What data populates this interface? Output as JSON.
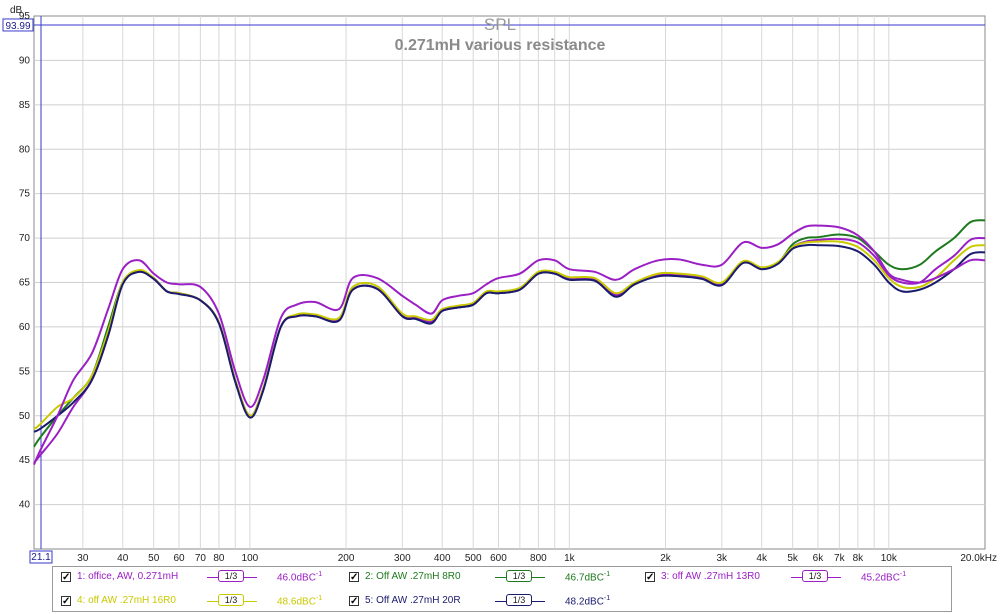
{
  "chart_data": {
    "type": "line",
    "title": "SPL",
    "subtitle": "0.271mH various resistance",
    "ylabel": "dB",
    "xscale": "log",
    "xlim": [
      21.1,
      20000
    ],
    "ylim": [
      35,
      95
    ],
    "grid": true,
    "cursor_readout": "93.99",
    "x_start_readout": "21.1",
    "y_ticks": [
      "40",
      "45",
      "50",
      "55",
      "60",
      "65",
      "70",
      "75",
      "80",
      "85",
      "90",
      "95"
    ],
    "x_ticks": [
      {
        "v": 30,
        "label": "30"
      },
      {
        "v": 40,
        "label": "40"
      },
      {
        "v": 50,
        "label": "50"
      },
      {
        "v": 60,
        "label": "60"
      },
      {
        "v": 70,
        "label": "70"
      },
      {
        "v": 80,
        "label": "80"
      },
      {
        "v": 100,
        "label": "100"
      },
      {
        "v": 200,
        "label": "200"
      },
      {
        "v": 300,
        "label": "300"
      },
      {
        "v": 400,
        "label": "400"
      },
      {
        "v": 500,
        "label": "500"
      },
      {
        "v": 600,
        "label": "600"
      },
      {
        "v": 800,
        "label": "800"
      },
      {
        "v": 1000,
        "label": "1k"
      },
      {
        "v": 2000,
        "label": "2k"
      },
      {
        "v": 3000,
        "label": "3k"
      },
      {
        "v": 4000,
        "label": "4k"
      },
      {
        "v": 5000,
        "label": "5k"
      },
      {
        "v": 6000,
        "label": "6k"
      },
      {
        "v": 7000,
        "label": "7k"
      },
      {
        "v": 8000,
        "label": "8k"
      },
      {
        "v": 10000,
        "label": "10k"
      },
      {
        "v": 20000,
        "label": "20.0kHz"
      }
    ],
    "x": [
      21.1,
      22,
      25,
      28,
      32,
      36,
      40,
      45,
      50,
      55,
      60,
      70,
      80,
      90,
      100,
      110,
      125,
      140,
      160,
      190,
      210,
      250,
      300,
      330,
      370,
      400,
      450,
      500,
      550,
      600,
      700,
      800,
      900,
      1000,
      1200,
      1400,
      1600,
      1900,
      2200,
      2600,
      3000,
      3500,
      4000,
      4500,
      5000,
      5500,
      6000,
      7000,
      8000,
      9000,
      10000,
      11000,
      12500,
      14000,
      16000,
      18000,
      20000
    ],
    "series": [
      {
        "name": "1: office, AW, 0.271mH",
        "color": "#9a1fc4",
        "smoothing": "1/3",
        "level": "46.0dBC",
        "values": [
          44.5,
          46,
          50,
          54,
          57,
          62,
          66.5,
          67.5,
          66,
          65,
          64.8,
          64.5,
          61.5,
          55,
          51,
          54,
          61,
          62.5,
          62.8,
          62,
          65.5,
          65.5,
          63.5,
          62.5,
          61.5,
          63,
          63.5,
          63.8,
          64.8,
          65.5,
          66,
          67.5,
          67.5,
          66.5,
          66.2,
          65.3,
          66.5,
          67.5,
          67.6,
          67,
          67,
          69.5,
          68.9,
          69.3,
          70.5,
          71.3,
          71.4,
          71.2,
          70.3,
          68.5,
          66,
          65.3,
          65,
          65.5,
          66.5,
          67.5,
          67.5
        ]
      },
      {
        "name": "2: Off AW .27mH 8R0",
        "color": "#1e7a1e",
        "smoothing": "1/3",
        "level": "46.7dBC",
        "values": [
          46.5,
          47.5,
          50,
          52,
          54.5,
          60,
          65,
          66.3,
          65.5,
          64,
          63.8,
          63,
          60.5,
          54,
          50,
          53,
          60,
          61.3,
          61.3,
          60.8,
          64.2,
          64.3,
          61.3,
          61,
          60.6,
          61.8,
          62.2,
          62.5,
          63.8,
          63.8,
          64.2,
          66,
          66,
          65.4,
          65.3,
          63.6,
          64.8,
          65.8,
          65.8,
          65.5,
          64.8,
          67.3,
          66.6,
          67.2,
          69.3,
          70,
          70.1,
          70.4,
          70,
          68.5,
          67,
          66.5,
          67,
          68.5,
          70,
          71.8,
          72
        ]
      },
      {
        "name": "3: off AW .27mH 13R0",
        "color": "#9a1fc4",
        "smoothing": "1/3",
        "level": "45.2dBC",
        "values": [
          44.7,
          45.5,
          48,
          51,
          54,
          59,
          65,
          66.2,
          65.5,
          64,
          63.8,
          63,
          60.5,
          54,
          50,
          53,
          60,
          61.2,
          61.2,
          60.8,
          64.2,
          64.3,
          61.3,
          61,
          60.6,
          61.8,
          62.2,
          62.5,
          63.8,
          63.8,
          64.2,
          66,
          66,
          65.4,
          65.3,
          63.6,
          64.8,
          65.8,
          65.8,
          65.5,
          64.8,
          67.3,
          66.6,
          67.2,
          69,
          69.6,
          69.8,
          69.9,
          69.5,
          68,
          65.8,
          65,
          65,
          66.5,
          68,
          69.8,
          70
        ]
      },
      {
        "name": "4: off AW .27mH 16R0",
        "color": "#c9c900",
        "smoothing": "1/3",
        "level": "48.6dBC",
        "values": [
          48.5,
          49,
          51,
          52,
          54.5,
          59.5,
          65,
          66.4,
          65.5,
          64,
          63.8,
          63,
          60.5,
          54,
          50,
          53,
          60,
          61.4,
          61.4,
          61,
          64.5,
          64.6,
          61.5,
          61.2,
          60.8,
          62,
          62.4,
          62.7,
          64,
          64,
          64.4,
          66.2,
          66.2,
          65.6,
          65.5,
          63.8,
          65,
          66,
          66,
          65.7,
          65,
          67.4,
          66.7,
          67.3,
          69,
          69.5,
          69.6,
          69.6,
          69,
          67.5,
          65.5,
          64.5,
          64.5,
          65.5,
          67.5,
          69,
          69.2
        ]
      },
      {
        "name": "5: Off AW .27mH 20R",
        "color": "#1a1a6e",
        "smoothing": "1/3",
        "level": "48.2dBC",
        "values": [
          48.2,
          48.5,
          50,
          51.5,
          54,
          59,
          64.8,
          66.2,
          65.4,
          64,
          63.7,
          63,
          60.4,
          53.8,
          49.8,
          52.8,
          60,
          61.2,
          61.2,
          60.7,
          64.2,
          64.3,
          61.2,
          60.9,
          60.4,
          61.8,
          62.2,
          62.5,
          63.8,
          63.8,
          64.2,
          66,
          66,
          65.3,
          65.2,
          63.4,
          64.8,
          65.7,
          65.7,
          65.4,
          64.7,
          67.2,
          66.5,
          67.1,
          68.8,
          69.2,
          69.2,
          69.1,
          68.5,
          67,
          65,
          64,
          64.2,
          65,
          66.5,
          68.2,
          68.4
        ]
      }
    ]
  },
  "legend": {
    "items": [
      {
        "label": "1: office, AW, 0.271mH",
        "color": "#9a1fc4",
        "smoothing": "1/3",
        "level": "46.0dBC",
        "sup": "-1"
      },
      {
        "label": "2: Off AW .27mH 8R0",
        "color": "#1e7a1e",
        "smoothing": "1/3",
        "level": "46.7dBC",
        "sup": "-1"
      },
      {
        "label": "3: off AW .27mH 13R0",
        "color": "#9a1fc4",
        "smoothing": "1/3",
        "level": "45.2dBC",
        "sup": "-1"
      },
      {
        "label": "4: off AW .27mH 16R0",
        "color": "#c9c900",
        "smoothing": "1/3",
        "level": "48.6dBC",
        "sup": "-1"
      },
      {
        "label": "5: Off AW .27mH 20R",
        "color": "#1a1a6e",
        "smoothing": "1/3",
        "level": "48.2dBC",
        "sup": "-1"
      }
    ]
  }
}
